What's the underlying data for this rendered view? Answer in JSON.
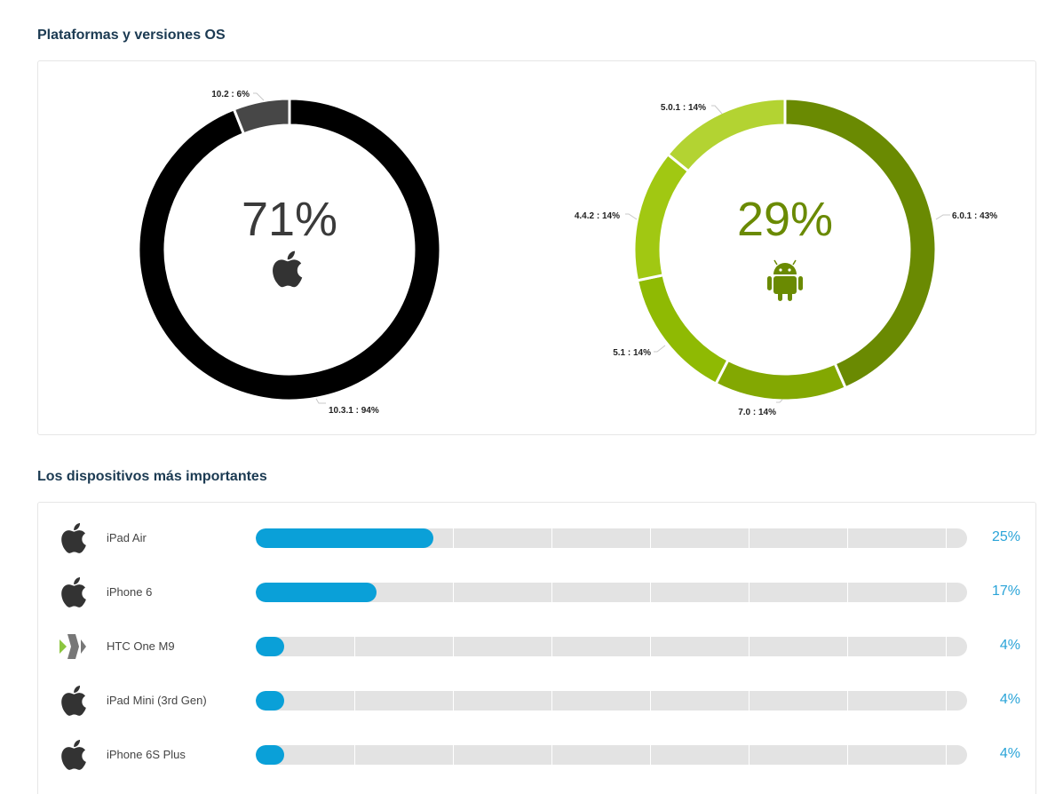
{
  "sections": {
    "platforms_title": "Plataformas y versiones OS",
    "devices_title": "Los dispositivos más importantes"
  },
  "colors": {
    "ios_main": "#000000",
    "ios_secondary": "#474747",
    "android_shades": [
      "#6a8a02",
      "#83a802",
      "#8fba03",
      "#a1c812",
      "#b3d332"
    ],
    "bar_fill": "#0aa0d8",
    "bar_track": "#e3e3e3",
    "pct_text": "#2aa4d8"
  },
  "chart_data": [
    {
      "type": "pie",
      "variant": "donut",
      "platform": "iOS",
      "center_value": "71%",
      "center_icon": "apple-icon",
      "slices": [
        {
          "label": "10.3.1 : 94%",
          "version": "10.3.1",
          "value": 94
        },
        {
          "label": "10.2 : 6%",
          "version": "10.2",
          "value": 6
        }
      ]
    },
    {
      "type": "pie",
      "variant": "donut",
      "platform": "Android",
      "center_value": "29%",
      "center_icon": "android-icon",
      "slices": [
        {
          "label": "6.0.1 : 43%",
          "version": "6.0.1",
          "value": 43
        },
        {
          "label": "7.0 : 14%",
          "version": "7.0",
          "value": 14
        },
        {
          "label": "5.1 : 14%",
          "version": "5.1",
          "value": 14
        },
        {
          "label": "4.4.2 : 14%",
          "version": "4.4.2",
          "value": 14
        },
        {
          "label": "5.0.1 : 14%",
          "version": "5.0.1",
          "value": 14
        }
      ]
    },
    {
      "type": "bar",
      "orientation": "horizontal",
      "categories": [
        "iPad Air",
        "iPhone 6",
        "HTC One M9",
        "iPad Mini (3rd Gen)",
        "iPhone 6S Plus"
      ],
      "values": [
        25,
        17,
        4,
        4,
        4
      ],
      "value_labels": [
        "25%",
        "17%",
        "4%",
        "4%",
        "4%"
      ],
      "icons": [
        "apple-icon",
        "apple-icon",
        "htc-icon",
        "apple-icon",
        "apple-icon"
      ],
      "xlim": [
        0,
        100
      ],
      "grid": true
    }
  ]
}
